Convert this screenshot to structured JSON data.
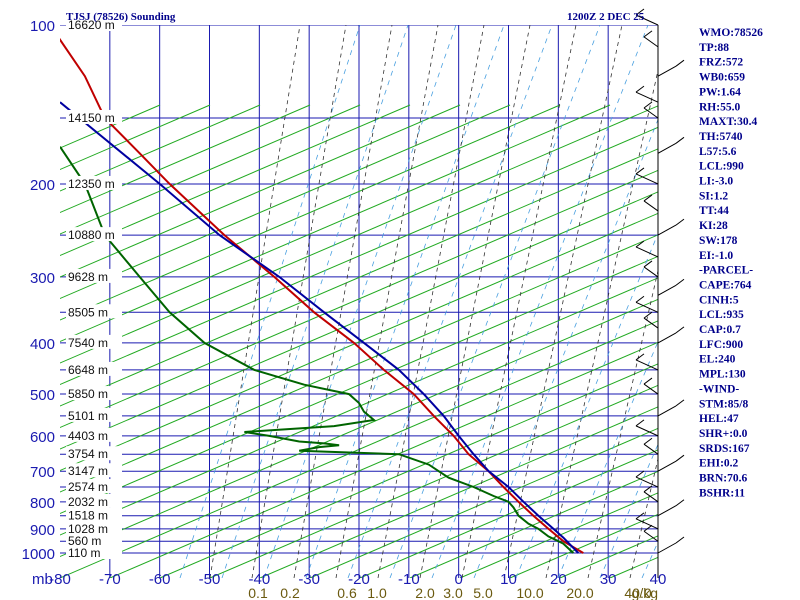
{
  "chart_data": {
    "type": "line",
    "title": "TJSJ (78526) Sounding",
    "time_label": "1200Z  2 DEC 25",
    "pressure_axis": {
      "label": "mb",
      "ticks": [
        100,
        200,
        300,
        400,
        500,
        600,
        700,
        800,
        900,
        1000
      ],
      "range": [
        100,
        1000
      ]
    },
    "temperature_axis": {
      "ticks": [
        "-80",
        "-70",
        "-60",
        "-50",
        "-40",
        "-30",
        "-20",
        "-10",
        "0",
        "10",
        "20",
        "30",
        "40"
      ],
      "range": [
        -80,
        40
      ]
    },
    "mixing_ratio_axis": {
      "unit": "g/kg",
      "ticks": [
        "0.1",
        "0.2",
        "0.6",
        "1.0",
        "2.0",
        "3.0",
        "5.0",
        "10.0",
        "20.0",
        "40.0"
      ]
    },
    "height_labels": [
      {
        "p": 100,
        "text": "16620 m"
      },
      {
        "p": 150,
        "text": "14150 m"
      },
      {
        "p": 200,
        "text": "12350 m"
      },
      {
        "p": 250,
        "text": "10880 m"
      },
      {
        "p": 300,
        "text": "9628 m"
      },
      {
        "p": 350,
        "text": "8505 m"
      },
      {
        "p": 400,
        "text": "7540 m"
      },
      {
        "p": 450,
        "text": "6648 m"
      },
      {
        "p": 500,
        "text": "5850 m"
      },
      {
        "p": 550,
        "text": "5101 m"
      },
      {
        "p": 600,
        "text": "4403 m"
      },
      {
        "p": 650,
        "text": "3754 m"
      },
      {
        "p": 700,
        "text": "3147 m"
      },
      {
        "p": 750,
        "text": "2574 m"
      },
      {
        "p": 800,
        "text": "2032 m"
      },
      {
        "p": 850,
        "text": "1518 m"
      },
      {
        "p": 900,
        "text": "1028 m"
      },
      {
        "p": 950,
        "text": "560 m"
      },
      {
        "p": 1000,
        "text": "110 m"
      }
    ],
    "series": [
      {
        "key": "temperature",
        "color": "#c00000",
        "points": [
          [
            100,
            -82
          ],
          [
            125,
            -75
          ],
          [
            150,
            -71
          ],
          [
            175,
            -64
          ],
          [
            200,
            -58
          ],
          [
            250,
            -47
          ],
          [
            300,
            -37
          ],
          [
            350,
            -29
          ],
          [
            400,
            -21
          ],
          [
            450,
            -15
          ],
          [
            500,
            -9
          ],
          [
            550,
            -5
          ],
          [
            600,
            -1
          ],
          [
            650,
            2
          ],
          [
            700,
            6
          ],
          [
            750,
            9
          ],
          [
            800,
            12
          ],
          [
            850,
            15
          ],
          [
            900,
            18
          ],
          [
            950,
            21
          ],
          [
            1000,
            25
          ]
        ]
      },
      {
        "key": "dewpoint",
        "color": "#006400",
        "points": [
          [
            170,
            -80
          ],
          [
            200,
            -75
          ],
          [
            250,
            -71
          ],
          [
            300,
            -64
          ],
          [
            350,
            -58
          ],
          [
            400,
            -51
          ],
          [
            450,
            -41
          ],
          [
            480,
            -31
          ],
          [
            500,
            -22
          ],
          [
            520,
            -20
          ],
          [
            540,
            -19
          ],
          [
            560,
            -17
          ],
          [
            575,
            -25
          ],
          [
            590,
            -43
          ],
          [
            600,
            -38
          ],
          [
            615,
            -32
          ],
          [
            620,
            -27
          ],
          [
            625,
            -24
          ],
          [
            630,
            -28
          ],
          [
            640,
            -32
          ],
          [
            650,
            -12
          ],
          [
            680,
            -6
          ],
          [
            700,
            -4
          ],
          [
            720,
            -2
          ],
          [
            750,
            3
          ],
          [
            780,
            7
          ],
          [
            800,
            10
          ],
          [
            820,
            11
          ],
          [
            850,
            12
          ],
          [
            880,
            14
          ],
          [
            900,
            16
          ],
          [
            930,
            18
          ],
          [
            960,
            21
          ],
          [
            1000,
            23
          ]
        ]
      },
      {
        "key": "parcel",
        "color": "#0000a0",
        "points": [
          [
            140,
            -80
          ],
          [
            200,
            -60
          ],
          [
            250,
            -48
          ],
          [
            300,
            -36
          ],
          [
            350,
            -27
          ],
          [
            400,
            -19
          ],
          [
            450,
            -12
          ],
          [
            500,
            -7
          ],
          [
            550,
            -3
          ],
          [
            600,
            0
          ],
          [
            650,
            3
          ],
          [
            700,
            6
          ],
          [
            750,
            10
          ],
          [
            800,
            13
          ],
          [
            850,
            16
          ],
          [
            900,
            19
          ],
          [
            935,
            21
          ],
          [
            1000,
            24
          ]
        ]
      }
    ],
    "indices": [
      "WMO:78526",
      "TP:88",
      "FRZ:572",
      "WB0:659",
      "PW:1.64",
      "RH:55.0",
      "MAXT:30.4",
      "TH:5740",
      "L57:5.6",
      "LCL:990",
      "LI:-3.0",
      "SI:1.2",
      "TT:44",
      "KI:28",
      "SW:178",
      "EI:-1.0",
      "-PARCEL-",
      "CAPE:764",
      "CINH:5",
      "LCL:935",
      "CAP:0.7",
      "LFC:900",
      "EL:240",
      "MPL:130",
      "-WIND-",
      "STM:85/8",
      "HEL:47",
      "SHR+:0.0",
      "SRDS:167",
      "EHI:0.2",
      "BRN:70.6",
      "BSHR:11"
    ],
    "grid": true
  }
}
